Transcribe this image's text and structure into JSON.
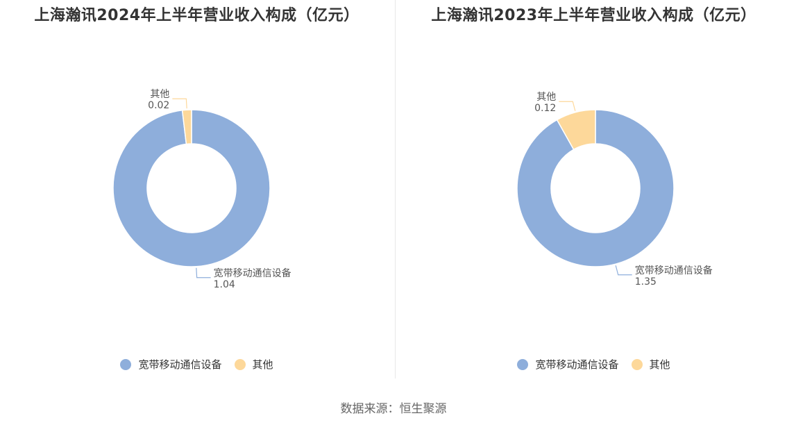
{
  "chart_data": [
    {
      "type": "pie",
      "title": "上海瀚讯2024年上半年营业收入构成（亿元）",
      "categories": [
        "宽带移动通信设备",
        "其他"
      ],
      "values": [
        1.04,
        0.02
      ],
      "value_labels": [
        "1.04",
        "0.02"
      ],
      "colors": [
        "#8eaedb",
        "#fdd89a"
      ],
      "legend": "bottom"
    },
    {
      "type": "pie",
      "title": "上海瀚讯2023年上半年营业收入构成（亿元）",
      "categories": [
        "宽带移动通信设备",
        "其他"
      ],
      "values": [
        1.35,
        0.12
      ],
      "value_labels": [
        "1.35",
        "0.12"
      ],
      "colors": [
        "#8eaedb",
        "#fdd89a"
      ],
      "legend": "bottom"
    }
  ],
  "source": "数据来源：恒生聚源"
}
